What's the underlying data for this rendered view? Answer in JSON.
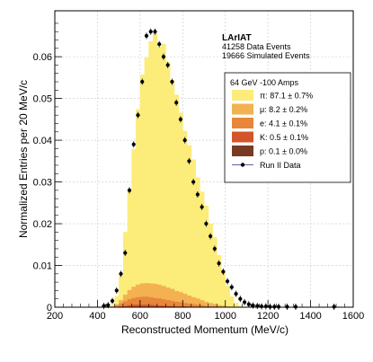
{
  "chart_data": {
    "type": "bar",
    "experiment_label": "LArIAT",
    "info_lines": [
      "41258 Data Events",
      "19666 Simulated Events"
    ],
    "xlabel": "Reconstructed Momentum (MeV/c)",
    "ylabel": "Normalized Entries per 20 MeV/c",
    "xlim": [
      200,
      1600
    ],
    "ylim": [
      0,
      0.071
    ],
    "x_ticks": [
      200,
      400,
      600,
      800,
      1000,
      1200,
      1400,
      1600
    ],
    "y_ticks": [
      0,
      0.01,
      0.02,
      0.03,
      0.04,
      0.05,
      0.06
    ],
    "grid": true,
    "bin_width": 20,
    "legend": {
      "placement": "top-right",
      "header": "64 GeV -100 Amps",
      "entries": [
        {
          "label": "π: 87.1 ± 0.7%",
          "color": "#FCEC7A",
          "kind": "fill"
        },
        {
          "label": "μ: 8.2 ± 0.2%",
          "color": "#F3B152",
          "kind": "fill"
        },
        {
          "label": "e: 4.1 ± 0.1%",
          "color": "#E8863A",
          "kind": "fill"
        },
        {
          "label": "K: 0.5 ± 0.1%",
          "color": "#D4552A",
          "kind": "fill"
        },
        {
          "label": "p: 0.1 ± 0.0%",
          "color": "#7A3A22",
          "kind": "fill"
        },
        {
          "label": "Run II Data",
          "color": "#000000",
          "kind": "marker"
        }
      ]
    },
    "bin_edges": [
      460,
      480,
      500,
      520,
      540,
      560,
      580,
      600,
      620,
      640,
      660,
      680,
      700,
      720,
      740,
      760,
      780,
      800,
      820,
      840,
      860,
      880,
      900,
      920,
      940,
      960,
      980,
      1000,
      1020,
      1040,
      1060,
      1080
    ],
    "series": [
      {
        "name": "π",
        "color": "#FCEC7A",
        "values": [
          0.0003,
          0.002,
          0.006,
          0.015,
          0.024,
          0.033,
          0.042,
          0.05,
          0.054,
          0.058,
          0.06,
          0.057,
          0.058,
          0.054,
          0.05,
          0.047,
          0.043,
          0.039,
          0.036,
          0.033,
          0.029,
          0.026,
          0.023,
          0.019,
          0.016,
          0.012,
          0.0085,
          0.005,
          0.0025,
          0.001,
          0.0003
        ]
      },
      {
        "name": "μ",
        "color": "#F3B152",
        "values": [
          0.0001,
          0.0003,
          0.0008,
          0.0016,
          0.0022,
          0.0027,
          0.003,
          0.0032,
          0.0033,
          0.0033,
          0.0034,
          0.0033,
          0.0032,
          0.003,
          0.0029,
          0.0026,
          0.0024,
          0.0022,
          0.002,
          0.0017,
          0.0015,
          0.0012,
          0.001,
          0.0008,
          0.0006,
          0.0004,
          0.0003,
          0.0002,
          0.0001,
          0.0001,
          0
        ]
      },
      {
        "name": "e",
        "color": "#E8863A",
        "values": [
          0.0001,
          0.0003,
          0.0007,
          0.0011,
          0.0014,
          0.0016,
          0.0018,
          0.0019,
          0.0019,
          0.0018,
          0.0017,
          0.0017,
          0.0015,
          0.0014,
          0.0012,
          0.0011,
          0.001,
          0.0008,
          0.0007,
          0.0006,
          0.0005,
          0.0004,
          0.0003,
          0.0002,
          0.0002,
          0.0001,
          0.0001,
          0,
          0,
          0,
          0
        ]
      },
      {
        "name": "K",
        "color": "#D4552A",
        "values": [
          0,
          0.0001,
          0.0002,
          0.0003,
          0.0004,
          0.0005,
          0.0005,
          0.0005,
          0.0005,
          0.0005,
          0.0004,
          0.0004,
          0.0004,
          0.0003,
          0.0003,
          0.0002,
          0.0002,
          0.0002,
          0.0001,
          0.0001,
          0.0001,
          0.0001,
          0,
          0,
          0,
          0,
          0,
          0,
          0,
          0,
          0
        ]
      },
      {
        "name": "p",
        "color": "#7A3A22",
        "values": [
          0,
          0,
          0,
          0,
          0.0001,
          0.0001,
          0.0001,
          0.0001,
          0.0001,
          0.0001,
          0.0001,
          0,
          0,
          0,
          0,
          0,
          0,
          0,
          0,
          0,
          0,
          0,
          0,
          0,
          0,
          0,
          0,
          0,
          0,
          0,
          0
        ]
      }
    ],
    "data_points": {
      "name": "Run II Data",
      "x": [
        430,
        450,
        470,
        490,
        510,
        530,
        550,
        570,
        590,
        610,
        630,
        650,
        670,
        690,
        710,
        730,
        750,
        770,
        790,
        810,
        830,
        850,
        870,
        890,
        910,
        930,
        950,
        970,
        990,
        1010,
        1030,
        1050,
        1070,
        1090,
        1110,
        1130,
        1150,
        1170,
        1190,
        1210,
        1230,
        1250,
        1290,
        1330,
        1510
      ],
      "y": [
        0.0003,
        0.0005,
        0.0015,
        0.004,
        0.008,
        0.013,
        0.028,
        0.039,
        0.046,
        0.054,
        0.065,
        0.066,
        0.066,
        0.063,
        0.06,
        0.058,
        0.054,
        0.049,
        0.045,
        0.04,
        0.035,
        0.03,
        0.027,
        0.024,
        0.02,
        0.017,
        0.014,
        0.0105,
        0.0085,
        0.0062,
        0.0048,
        0.0032,
        0.002,
        0.0012,
        0.0007,
        0.0004,
        0.0003,
        0.0002,
        0.0002,
        0.0001,
        0.0001,
        0.0001,
        0.0001,
        0.0001,
        0.0001
      ]
    }
  }
}
